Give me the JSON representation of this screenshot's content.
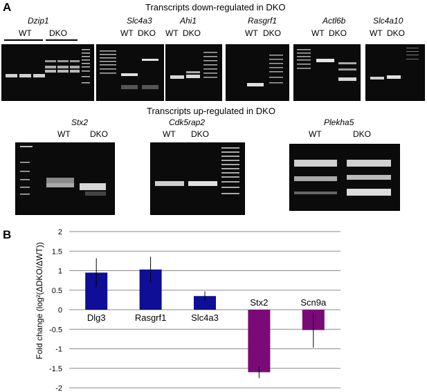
{
  "panel_a": {
    "letter": "A",
    "title_down": "Transcripts down-regulated in DKO",
    "title_up": "Transcripts up-regulated in DKO",
    "genes_down": [
      {
        "name": "Dzip1",
        "wt": "WT",
        "dko": "DKO"
      },
      {
        "name": "Slc4a3",
        "wt": "WT",
        "dko": "DKO"
      },
      {
        "name": "Ahi1",
        "wt": "WT",
        "dko": "DKO"
      },
      {
        "name": "Rasgrf1",
        "wt": "WT",
        "dko": "DKO"
      },
      {
        "name": "Actl6b",
        "wt": "WT",
        "dko": "DKO"
      },
      {
        "name": "Slc4a10",
        "wt": "WT",
        "dko": "DKO"
      }
    ],
    "genes_up": [
      {
        "name": "Stx2",
        "wt": "WT",
        "dko": "DKO"
      },
      {
        "name": "Cdk5rap2",
        "wt": "WT",
        "dko": "DKO"
      },
      {
        "name": "Plekha5",
        "wt": "WT",
        "dko": "DKO"
      }
    ]
  },
  "panel_b": {
    "letter": "B",
    "ylabel": "Fold change (log²(ΔDKO/ΔWT))"
  },
  "chart_data": {
    "type": "bar",
    "categories": [
      "Dlg3",
      "Rasgrf1",
      "Slc4a3",
      "Stx2",
      "Scn9a"
    ],
    "values": [
      0.95,
      1.03,
      0.35,
      -1.6,
      -0.52
    ],
    "errors": [
      0.37,
      0.33,
      0.12,
      0.15,
      0.45
    ],
    "colors": [
      "#0e0e96",
      "#0e0e96",
      "#0e0e96",
      "#7a0a78",
      "#7a0a78"
    ],
    "ylabel": "Fold change (log²(ΔDKO/ΔWT))",
    "ylim": [
      -2,
      2
    ],
    "yticks": [
      "2",
      "1.5",
      "1",
      "0.5",
      "0",
      "-0.5",
      "-1",
      "-1.5",
      "-2"
    ],
    "grid": true
  }
}
